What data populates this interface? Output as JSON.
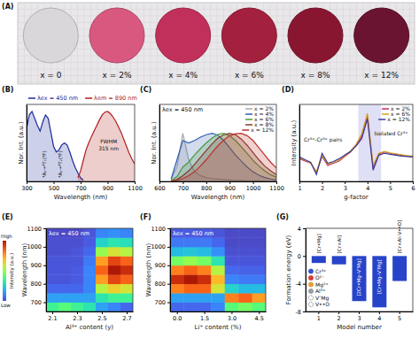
{
  "photo": {
    "panel": "(A)",
    "samples": [
      {
        "label": "x = 0",
        "color": "#d9d7da"
      },
      {
        "label": "x = 2%",
        "color": "#d8587f"
      },
      {
        "label": "x = 4%",
        "color": "#c1305a"
      },
      {
        "label": "x = 6%",
        "color": "#a3203e"
      },
      {
        "label": "x = 8%",
        "color": "#891631"
      },
      {
        "label": "x = 12%",
        "color": "#6a1431"
      }
    ]
  },
  "chart_data": [
    {
      "panel": "(B)",
      "type": "area",
      "x_label": "Wavelength (nm)",
      "y_label": "Nor. Int. (a.u.)",
      "xlim": [
        300,
        1100
      ],
      "xticks": [
        300,
        500,
        700,
        900,
        1100
      ],
      "ylim": [
        0,
        1.1
      ],
      "tick_labels": "x",
      "legend": "top",
      "series": [
        {
          "name": "λex = 450 nm",
          "color": "#1c2a9c",
          "x": [
            300,
            320,
            340,
            360,
            380,
            400,
            420,
            440,
            460,
            480,
            500,
            520,
            540,
            560,
            580,
            600,
            620,
            640,
            660,
            680,
            700,
            720
          ],
          "values": [
            0.75,
            0.95,
            1.0,
            0.9,
            0.8,
            0.72,
            0.85,
            0.95,
            0.9,
            0.7,
            0.5,
            0.42,
            0.45,
            0.52,
            0.55,
            0.52,
            0.42,
            0.3,
            0.2,
            0.12,
            0.05,
            0.02
          ]
        },
        {
          "name": "λem = 890 nm",
          "color": "#b01c1c",
          "x": [
            680,
            700,
            720,
            740,
            760,
            780,
            800,
            820,
            840,
            860,
            880,
            900,
            920,
            940,
            960,
            980,
            1000,
            1020,
            1040,
            1060,
            1080,
            1100
          ],
          "values": [
            0.05,
            0.15,
            0.3,
            0.45,
            0.55,
            0.64,
            0.72,
            0.8,
            0.88,
            0.95,
            0.99,
            1.0,
            0.97,
            0.92,
            0.86,
            0.78,
            0.7,
            0.6,
            0.5,
            0.4,
            0.32,
            0.25
          ]
        }
      ],
      "annotations": [
        "⁴A₂→⁴T₁(⁴F)",
        "⁴A₂→⁴T₂(⁴F)",
        "FWHM",
        "315 nm"
      ]
    },
    {
      "panel": "(C)",
      "type": "area",
      "title": "λex = 450 nm",
      "x_label": "Wavelength (nm)",
      "y_label": "Nor. Int. (a.u.)",
      "xlim": [
        600,
        1100
      ],
      "xticks": [
        600,
        700,
        800,
        900,
        1000,
        1100
      ],
      "ylim": [
        0,
        1.6
      ],
      "tick_labels": "x",
      "legend": "top-right",
      "x": [
        650,
        675,
        700,
        725,
        750,
        775,
        800,
        825,
        850,
        875,
        900,
        925,
        950,
        975,
        1000,
        1025,
        1050,
        1075,
        1100
      ],
      "series": [
        {
          "name": "x = 2%",
          "color": "#a9a9a9",
          "values": [
            0.05,
            0.3,
            1.0,
            0.45,
            0.2,
            0.12,
            0.08,
            0.06,
            0.05,
            0.04,
            0.03,
            0.02,
            0.02,
            0.01,
            0.01,
            0.01,
            0,
            0,
            0
          ]
        },
        {
          "name": "x = 4%",
          "color": "#3060b0",
          "values": [
            0.05,
            0.45,
            0.85,
            0.8,
            0.85,
            0.92,
            0.97,
            1.0,
            0.96,
            0.85,
            0.7,
            0.55,
            0.42,
            0.3,
            0.2,
            0.13,
            0.08,
            0.05,
            0.03
          ]
        },
        {
          "name": "x = 6%",
          "color": "#4a9a3a",
          "values": [
            0.02,
            0.1,
            0.3,
            0.4,
            0.55,
            0.68,
            0.8,
            0.9,
            0.98,
            1.0,
            0.95,
            0.85,
            0.72,
            0.58,
            0.44,
            0.32,
            0.22,
            0.14,
            0.09
          ]
        },
        {
          "name": "x = 8%",
          "color": "#7b3f2a",
          "values": [
            0.01,
            0.04,
            0.12,
            0.22,
            0.35,
            0.5,
            0.64,
            0.78,
            0.9,
            0.97,
            1.0,
            0.97,
            0.88,
            0.75,
            0.6,
            0.45,
            0.32,
            0.22,
            0.14
          ]
        },
        {
          "name": "x = 12%",
          "color": "#c0302a",
          "values": [
            0,
            0.02,
            0.06,
            0.12,
            0.2,
            0.32,
            0.45,
            0.6,
            0.74,
            0.86,
            0.95,
            0.99,
            1.0,
            0.95,
            0.85,
            0.7,
            0.55,
            0.4,
            0.28
          ]
        }
      ]
    },
    {
      "panel": "(D)",
      "type": "line",
      "x_label": "g-factor",
      "y_label": "Intensity (a.u.)",
      "xlim": [
        1,
        6
      ],
      "xticks": [
        1,
        2,
        3,
        4,
        5,
        6
      ],
      "ylim": [
        -0.5,
        1.2
      ],
      "tick_labels": "x",
      "legend": "top-right",
      "shaded_range": [
        3.6,
        4.6
      ],
      "x": [
        1,
        1.25,
        1.5,
        1.75,
        2,
        2.25,
        2.5,
        2.75,
        3,
        3.25,
        3.5,
        3.75,
        4,
        4.25,
        4.5,
        4.75,
        5,
        5.25,
        5.5,
        5.75,
        6
      ],
      "series": [
        {
          "name": "x = 2%",
          "color": "#c03060",
          "values": [
            0.0,
            -0.05,
            -0.1,
            -0.3,
            0.05,
            -0.15,
            -0.1,
            -0.05,
            0.05,
            0.15,
            0.3,
            0.5,
            0.95,
            -0.2,
            0.1,
            0.15,
            0.12,
            0.1,
            0.08,
            0.06,
            0.05
          ]
        },
        {
          "name": "x = 6%",
          "color": "#d4a020",
          "values": [
            0.02,
            -0.03,
            -0.1,
            -0.28,
            0.08,
            -0.12,
            -0.08,
            -0.03,
            0.07,
            0.17,
            0.32,
            0.55,
            1.0,
            -0.15,
            0.12,
            0.16,
            0.13,
            0.11,
            0.09,
            0.07,
            0.06
          ]
        },
        {
          "name": "x = 12%",
          "color": "#3a3a9a",
          "values": [
            0.04,
            -0.02,
            -0.08,
            -0.35,
            0.12,
            -0.1,
            -0.06,
            0.0,
            0.08,
            0.16,
            0.28,
            0.45,
            0.88,
            -0.25,
            0.08,
            0.12,
            0.1,
            0.08,
            0.06,
            0.05,
            0.04
          ]
        }
      ],
      "annotations": [
        "Cr³⁺-Cr³⁺ pairs",
        "Isolated Cr³⁺"
      ]
    },
    {
      "panel": "(E)",
      "type": "heatmap",
      "title": "λex = 450 nm",
      "x_label": "Al³⁺ content (y)",
      "y_label": "Wavelength (nm)",
      "xlim": [
        2.05,
        2.75
      ],
      "xticks": [
        2.1,
        2.3,
        2.5,
        2.7
      ],
      "ylim": [
        650,
        1100
      ],
      "yticks": [
        700,
        800,
        900,
        1000,
        1100
      ],
      "x": [
        2.1,
        2.2,
        2.3,
        2.4,
        2.5,
        2.6,
        2.7
      ],
      "y": [
        675,
        725,
        775,
        825,
        875,
        925,
        975,
        1025,
        1075
      ],
      "z": [
        [
          0.35,
          0.4,
          0.35,
          0.3,
          0.15,
          0.1,
          0.05
        ],
        [
          0.15,
          0.15,
          0.15,
          0.15,
          0.3,
          0.35,
          0.35
        ],
        [
          0.05,
          0.05,
          0.05,
          0.1,
          0.55,
          0.65,
          0.6
        ],
        [
          0.02,
          0.02,
          0.03,
          0.1,
          0.75,
          0.9,
          0.85
        ],
        [
          0.02,
          0.02,
          0.03,
          0.1,
          0.85,
          1.0,
          0.95
        ],
        [
          0.02,
          0.02,
          0.02,
          0.08,
          0.75,
          0.9,
          0.85
        ],
        [
          0.01,
          0.01,
          0.02,
          0.05,
          0.5,
          0.6,
          0.55
        ],
        [
          0.01,
          0.01,
          0.01,
          0.03,
          0.25,
          0.3,
          0.28
        ],
        [
          0,
          0,
          0,
          0.02,
          0.1,
          0.12,
          0.1
        ]
      ],
      "colorbar": {
        "range": [
          0,
          1
        ],
        "low_label": "Low",
        "high_label": "High",
        "title": "Intensity (a.u.)"
      }
    },
    {
      "panel": "(F)",
      "type": "heatmap",
      "title": "λex = 450 nm",
      "x_label": "Li⁺ content (%)",
      "y_label": "Wavelength (nm)",
      "xlim": [
        -0.375,
        4.875
      ],
      "xticks": [
        {
          "value": 0,
          "label": "0.0"
        },
        1.5,
        {
          "value": 3,
          "label": "3.0"
        },
        4.5
      ],
      "ylim": [
        650,
        1100
      ],
      "yticks": [
        700,
        800,
        900,
        1000,
        1100
      ],
      "x": [
        0,
        0.75,
        1.5,
        2.25,
        3,
        3.75,
        4.5
      ],
      "y": [
        675,
        725,
        775,
        825,
        875,
        925,
        975,
        1025,
        1075
      ],
      "z": [
        [
          0.05,
          0.05,
          0.05,
          0.1,
          0.4,
          0.45,
          0.4
        ],
        [
          0.15,
          0.15,
          0.15,
          0.15,
          0.8,
          0.85,
          0.75
        ],
        [
          0.8,
          0.85,
          0.85,
          0.6,
          0.25,
          0.2,
          0.2
        ],
        [
          0.95,
          1.0,
          0.95,
          0.7,
          0.1,
          0.08,
          0.08
        ],
        [
          0.8,
          0.85,
          0.8,
          0.55,
          0.05,
          0.04,
          0.04
        ],
        [
          0.45,
          0.5,
          0.45,
          0.3,
          0.02,
          0.02,
          0.02
        ],
        [
          0.2,
          0.22,
          0.2,
          0.12,
          0.01,
          0.01,
          0.01
        ],
        [
          0.08,
          0.08,
          0.08,
          0.05,
          0,
          0,
          0
        ],
        [
          0.03,
          0.03,
          0.03,
          0.02,
          0,
          0,
          0
        ]
      ]
    },
    {
      "panel": "(G)",
      "type": "bar",
      "x_label": "Model number",
      "y_label": "Formation energy (eV)",
      "categories": [
        1,
        2,
        3,
        4,
        5
      ],
      "values": [
        -1.0,
        -1.2,
        -6.5,
        -7.4,
        -3.6
      ],
      "color": "#2743c9",
      "ylim": [
        -8,
        4
      ],
      "yticks": [
        -8,
        -4,
        0,
        4
      ],
      "bar_labels": [
        "[Cr•Mg]",
        "[Cr×Al]",
        "[2Cr•Mg–V″Mg]",
        "[Cr•Mg–V″Mg]′",
        "[Cr×Al–V••O]"
      ],
      "species": [
        {
          "name": "Cr³⁺",
          "color": "#2f55d4"
        },
        {
          "name": "O²⁻",
          "color": "#e03a2f"
        },
        {
          "name": "Mg²⁺",
          "color": "#f0a030"
        },
        {
          "name": "Al³⁺",
          "color": "#9aa0a8"
        },
        {
          "name": "V″Mg",
          "color": "#ffffff"
        },
        {
          "name": "V••O",
          "color": "#ffffff"
        }
      ]
    }
  ]
}
